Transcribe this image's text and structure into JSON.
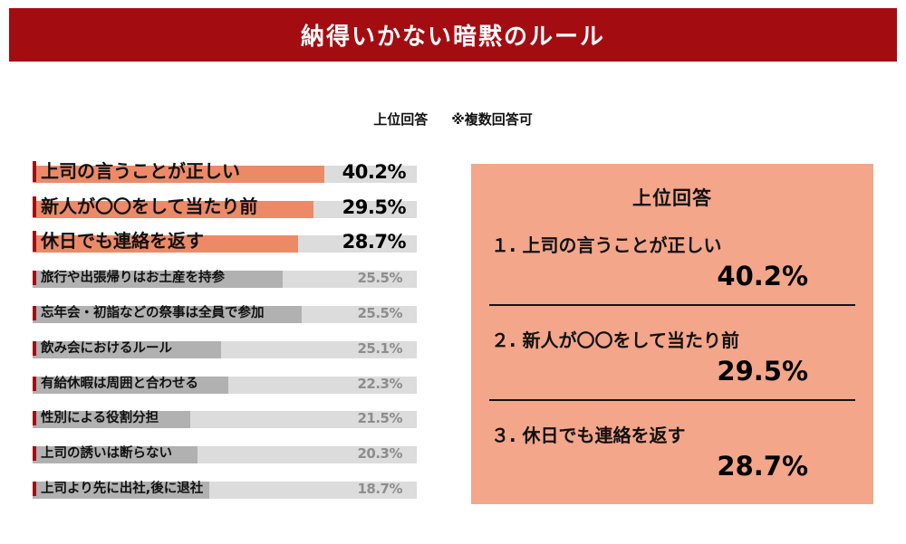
{
  "colors": {
    "header_bg": "#a30d12",
    "accent_bar": "#ec8a68",
    "panel_bg": "#f3a68a",
    "gray_bar": "#b1b1b1",
    "track_gray": "#dcdcdc",
    "gray_value": "#8d8d8d",
    "tick_red": "#a30d12"
  },
  "header": {
    "title": "納得いかない暗黙のルール"
  },
  "subtitle": {
    "left": "上位回答",
    "right": "※複数回答可"
  },
  "chart_data": {
    "type": "bar",
    "orientation": "horizontal",
    "title": "納得いかない暗黙のルール",
    "subtitle": "上位回答 ※複数回答可",
    "categories": [
      "上司の言うことが正しい",
      "新人が〇〇をして当たり前",
      "休日でも連絡を返す",
      "旅行や出張帰りはお土産を持参",
      "忘年会・初詣などの祭事は全員で参加",
      "飲み会におけるルール",
      "有給休暇は周囲と合わせる",
      "性別による役割分担",
      "上司の誘いは断らない",
      "上司より先に出社,後に退社"
    ],
    "values": [
      40.2,
      29.5,
      28.7,
      25.5,
      25.5,
      25.1,
      22.3,
      21.5,
      20.3,
      18.7
    ],
    "unit": "%",
    "highlight_count": 3,
    "xlim": [
      0,
      52
    ],
    "bar_pct": [
      76,
      73,
      69,
      65,
      70,
      49,
      51,
      41,
      43,
      46
    ],
    "grid": false,
    "value_labels": true,
    "legend": false
  },
  "panel": {
    "title": "上位回答",
    "items": [
      {
        "rank": "１.",
        "label": "上司の言うことが正しい",
        "value": "40.2%"
      },
      {
        "rank": "２.",
        "label": "新人が〇〇をして当たり前",
        "value": "29.5%"
      },
      {
        "rank": "３.",
        "label": "休日でも連絡を返す",
        "value": "28.7%"
      }
    ]
  }
}
